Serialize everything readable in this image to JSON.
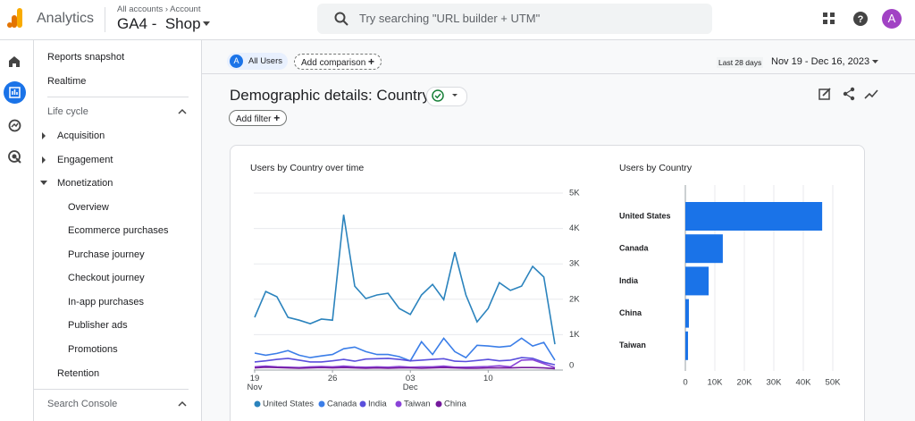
{
  "header": {
    "product": "Analytics",
    "breadcrumb": [
      "All accounts",
      "Account"
    ],
    "property": "GA4 -  Shop",
    "search_placeholder": "Try searching \"URL builder + UTM\"",
    "avatar": "A"
  },
  "nav": {
    "items": [
      "Reports snapshot",
      "Realtime",
      "Life cycle",
      "Acquisition",
      "Engagement",
      "Monetization",
      "Overview",
      "Ecommerce purchases",
      "Purchase journey",
      "Checkout journey",
      "In-app purchases",
      "Publisher ads",
      "Promotions",
      "Retention",
      "Search Console"
    ]
  },
  "toolbar": {
    "segment_badge": "A",
    "segment": "All Users",
    "add_comparison": "Add comparison",
    "range_label": "Last 28 days",
    "date_range": "Nov 19 - Dec 16, 2023"
  },
  "report": {
    "title": "Demographic details: Country",
    "add_filter": "Add filter"
  },
  "chart_data": [
    {
      "type": "line",
      "title": "Users by Country over time",
      "categories": [
        "19\nNov",
        null,
        null,
        null,
        null,
        null,
        null,
        "26",
        null,
        null,
        null,
        null,
        null,
        null,
        "03\nDec",
        null,
        null,
        null,
        null,
        null,
        null,
        "10",
        null,
        null,
        null,
        null,
        null,
        null
      ],
      "series": [
        {
          "name": "United States",
          "color": "#2b83bd",
          "values": [
            1490,
            2220,
            2070,
            1490,
            1410,
            1310,
            1440,
            1410,
            4390,
            2370,
            2020,
            2120,
            2170,
            1740,
            1570,
            2120,
            2420,
            1990,
            3330,
            2120,
            1360,
            1740,
            2470,
            2250,
            2370,
            2930,
            2630,
            730
          ]
        },
        {
          "name": "Canada",
          "color": "#3b7ee8",
          "values": [
            480,
            420,
            470,
            550,
            420,
            350,
            400,
            440,
            600,
            650,
            520,
            440,
            440,
            380,
            260,
            800,
            440,
            900,
            520,
            350,
            700,
            680,
            650,
            680,
            900,
            680,
            780,
            280
          ]
        },
        {
          "name": "India",
          "color": "#5a4fdc",
          "values": [
            230,
            260,
            300,
            330,
            280,
            230,
            230,
            260,
            300,
            250,
            310,
            320,
            330,
            300,
            260,
            280,
            300,
            320,
            250,
            240,
            270,
            300,
            260,
            280,
            350,
            330,
            220,
            150
          ]
        },
        {
          "name": "Taiwan",
          "color": "#8a44d8",
          "values": [
            90,
            110,
            90,
            80,
            70,
            90,
            100,
            90,
            110,
            90,
            80,
            90,
            80,
            100,
            80,
            90,
            90,
            110,
            80,
            80,
            90,
            100,
            120,
            90,
            280,
            290,
            180,
            70
          ]
        },
        {
          "name": "China",
          "color": "#74199c",
          "values": [
            60,
            80,
            70,
            60,
            50,
            60,
            70,
            60,
            70,
            60,
            50,
            60,
            50,
            60,
            60,
            50,
            60,
            70,
            60,
            50,
            50,
            60,
            60,
            60,
            70,
            70,
            60,
            40
          ]
        }
      ],
      "ylim": [
        0,
        5000
      ],
      "yticks": [
        0,
        {
          "value": 1000,
          "label": "1K"
        },
        {
          "value": 2000,
          "label": "2K"
        },
        {
          "value": 3000,
          "label": "3K"
        },
        {
          "value": 4000,
          "label": "4K"
        },
        {
          "value": 5000,
          "label": "5K"
        }
      ],
      "grid": true,
      "legend": "bottom"
    },
    {
      "type": "hbar",
      "title": "Users by Country",
      "categories": [
        "United States",
        "Canada",
        "India",
        "China",
        "Taiwan"
      ],
      "values": [
        46400,
        12700,
        7900,
        1200,
        900
      ],
      "color": "#1a73e8",
      "xlim": [
        0,
        50000
      ],
      "xticks": [
        0,
        {
          "value": 10000,
          "label": "10K"
        },
        {
          "value": 20000,
          "label": "20K"
        },
        {
          "value": 30000,
          "label": "30K"
        },
        {
          "value": 40000,
          "label": "40K"
        },
        {
          "value": 50000,
          "label": "50K"
        }
      ],
      "grid": true
    }
  ]
}
